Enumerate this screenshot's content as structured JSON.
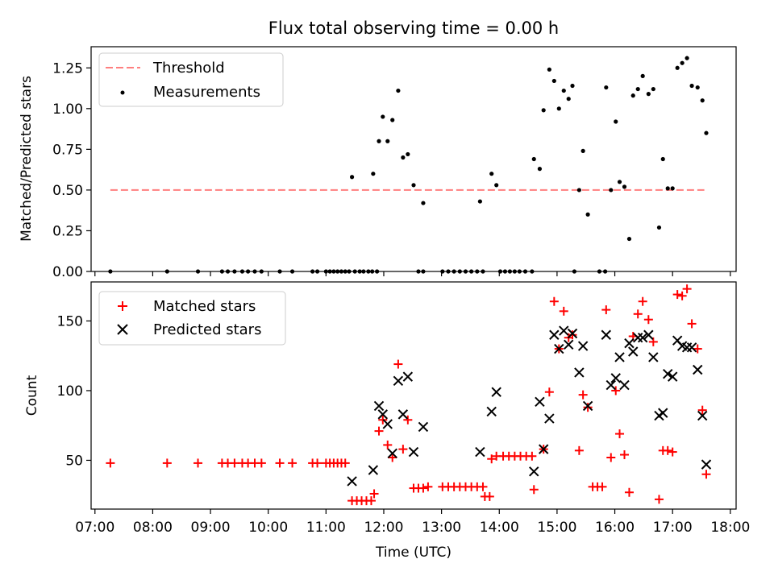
{
  "chart_data": [
    {
      "type": "scatter",
      "title": "Flux total observing time = 0.00 h",
      "ylabel": "Matched/Predicted stars",
      "xlabel": "",
      "xlim": [
        "06:56",
        "18:06"
      ],
      "ylim": [
        0,
        1.38
      ],
      "yticks": [
        "0.00",
        "0.25",
        "0.50",
        "0.75",
        "1.00",
        "1.25"
      ],
      "ytick_values": [
        0,
        0.25,
        0.5,
        0.75,
        1.0,
        1.25
      ],
      "grid": false,
      "legend_position": "top-left",
      "legend": [
        "Threshold",
        "Measurements"
      ],
      "threshold": {
        "name": "Threshold",
        "value": 0.5,
        "x_start": "07:16",
        "x_end": "17:33",
        "color": "#ff7f7f",
        "style": "dashed"
      },
      "series": [
        {
          "name": "Measurements",
          "marker": "dot",
          "color": "#000000",
          "points": [
            [
              "07:16",
              0
            ],
            [
              "08:15",
              0
            ],
            [
              "08:47",
              0
            ],
            [
              "09:12",
              0
            ],
            [
              "09:18",
              0
            ],
            [
              "09:25",
              0
            ],
            [
              "09:33",
              0
            ],
            [
              "09:39",
              0
            ],
            [
              "09:46",
              0
            ],
            [
              "09:53",
              0
            ],
            [
              "10:12",
              0
            ],
            [
              "10:25",
              0
            ],
            [
              "10:46",
              0
            ],
            [
              "10:51",
              0
            ],
            [
              "11:00",
              0
            ],
            [
              "11:04",
              0
            ],
            [
              "11:08",
              0
            ],
            [
              "11:12",
              0
            ],
            [
              "11:16",
              0
            ],
            [
              "11:20",
              0
            ],
            [
              "11:24",
              0
            ],
            [
              "11:30",
              0
            ],
            [
              "11:35",
              0
            ],
            [
              "11:39",
              0
            ],
            [
              "11:44",
              0
            ],
            [
              "11:48",
              0
            ],
            [
              "11:53",
              0
            ],
            [
              "11:27",
              0.58
            ],
            [
              "11:49",
              0.6
            ],
            [
              "11:55",
              0.8
            ],
            [
              "11:59",
              0.95
            ],
            [
              "12:04",
              0.8
            ],
            [
              "12:09",
              0.93
            ],
            [
              "12:15",
              1.11
            ],
            [
              "12:20",
              0.7
            ],
            [
              "12:25",
              0.72
            ],
            [
              "12:31",
              0.53
            ],
            [
              "12:41",
              0.42
            ],
            [
              "12:36",
              0
            ],
            [
              "12:41",
              0
            ],
            [
              "13:01",
              0
            ],
            [
              "13:07",
              0
            ],
            [
              "13:13",
              0
            ],
            [
              "13:19",
              0
            ],
            [
              "13:25",
              0
            ],
            [
              "13:31",
              0
            ],
            [
              "13:37",
              0
            ],
            [
              "13:43",
              0
            ],
            [
              "13:40",
              0.43
            ],
            [
              "13:52",
              0.6
            ],
            [
              "13:57",
              0.53
            ],
            [
              "14:01",
              0
            ],
            [
              "14:06",
              0
            ],
            [
              "14:11",
              0
            ],
            [
              "14:16",
              0
            ],
            [
              "14:21",
              0
            ],
            [
              "14:27",
              0
            ],
            [
              "14:34",
              0
            ],
            [
              "14:36",
              0.69
            ],
            [
              "14:42",
              0.63
            ],
            [
              "14:46",
              0.99
            ],
            [
              "14:52",
              1.24
            ],
            [
              "14:57",
              1.17
            ],
            [
              "15:02",
              1.0
            ],
            [
              "15:07",
              1.11
            ],
            [
              "15:12",
              1.06
            ],
            [
              "15:16",
              1.14
            ],
            [
              "15:23",
              0.5
            ],
            [
              "15:27",
              0.74
            ],
            [
              "15:32",
              0.35
            ],
            [
              "15:18",
              0
            ],
            [
              "15:44",
              0
            ],
            [
              "15:50",
              0
            ],
            [
              "15:51",
              1.13
            ],
            [
              "15:56",
              0.5
            ],
            [
              "16:01",
              0.92
            ],
            [
              "16:05",
              0.55
            ],
            [
              "16:10",
              0.52
            ],
            [
              "16:15",
              0.2
            ],
            [
              "16:19",
              1.08
            ],
            [
              "16:24",
              1.12
            ],
            [
              "16:29",
              1.2
            ],
            [
              "16:35",
              1.09
            ],
            [
              "16:40",
              1.12
            ],
            [
              "16:46",
              0.27
            ],
            [
              "16:50",
              0.69
            ],
            [
              "16:55",
              0.51
            ],
            [
              "17:00",
              0.51
            ],
            [
              "17:05",
              1.25
            ],
            [
              "17:10",
              1.28
            ],
            [
              "17:15",
              1.31
            ],
            [
              "17:20",
              1.14
            ],
            [
              "17:26",
              1.13
            ],
            [
              "17:31",
              1.05
            ],
            [
              "17:35",
              0.85
            ]
          ]
        }
      ]
    },
    {
      "type": "scatter",
      "title": "",
      "ylabel": "Count",
      "xlabel": "Time (UTC)",
      "xlim": [
        "06:56",
        "18:06"
      ],
      "ylim": [
        15,
        178
      ],
      "xticks": [
        "07:00",
        "08:00",
        "09:00",
        "10:00",
        "11:00",
        "12:00",
        "13:00",
        "14:00",
        "15:00",
        "16:00",
        "17:00",
        "18:00"
      ],
      "yticks": [
        "50",
        "100",
        "150"
      ],
      "ytick_values": [
        50,
        100,
        150
      ],
      "grid": false,
      "legend_position": "top-left",
      "legend": [
        "Matched stars",
        "Predicted stars"
      ],
      "series": [
        {
          "name": "Matched stars",
          "marker": "plus",
          "color": "#ff0000",
          "points": [
            [
              "07:16",
              48
            ],
            [
              "08:15",
              48
            ],
            [
              "08:47",
              48
            ],
            [
              "09:12",
              48
            ],
            [
              "09:18",
              48
            ],
            [
              "09:25",
              48
            ],
            [
              "09:33",
              48
            ],
            [
              "09:39",
              48
            ],
            [
              "09:46",
              48
            ],
            [
              "09:53",
              48
            ],
            [
              "10:12",
              48
            ],
            [
              "10:25",
              48
            ],
            [
              "10:46",
              48
            ],
            [
              "10:51",
              48
            ],
            [
              "11:00",
              48
            ],
            [
              "11:04",
              48
            ],
            [
              "11:08",
              48
            ],
            [
              "11:12",
              48
            ],
            [
              "11:16",
              48
            ],
            [
              "11:20",
              48
            ],
            [
              "11:27",
              21
            ],
            [
              "11:32",
              21
            ],
            [
              "11:37",
              21
            ],
            [
              "11:42",
              21
            ],
            [
              "11:47",
              21
            ],
            [
              "11:50",
              26
            ],
            [
              "11:55",
              71
            ],
            [
              "11:59",
              79
            ],
            [
              "12:04",
              61
            ],
            [
              "12:09",
              52
            ],
            [
              "12:15",
              119
            ],
            [
              "12:20",
              58
            ],
            [
              "12:25",
              79
            ],
            [
              "12:31",
              30
            ],
            [
              "12:36",
              30
            ],
            [
              "12:41",
              30
            ],
            [
              "12:46",
              31
            ],
            [
              "13:01",
              31
            ],
            [
              "13:07",
              31
            ],
            [
              "13:13",
              31
            ],
            [
              "13:19",
              31
            ],
            [
              "13:25",
              31
            ],
            [
              "13:31",
              31
            ],
            [
              "13:37",
              31
            ],
            [
              "13:43",
              31
            ],
            [
              "13:45",
              24
            ],
            [
              "13:50",
              24
            ],
            [
              "13:52",
              51
            ],
            [
              "13:57",
              53
            ],
            [
              "14:04",
              53
            ],
            [
              "14:10",
              53
            ],
            [
              "14:16",
              53
            ],
            [
              "14:22",
              53
            ],
            [
              "14:28",
              53
            ],
            [
              "14:34",
              53
            ],
            [
              "14:36",
              29
            ],
            [
              "14:46",
              58
            ],
            [
              "14:52",
              99
            ],
            [
              "14:57",
              164
            ],
            [
              "15:02",
              130
            ],
            [
              "15:07",
              157
            ],
            [
              "15:12",
              138
            ],
            [
              "15:16",
              140
            ],
            [
              "15:23",
              57
            ],
            [
              "15:27",
              97
            ],
            [
              "15:32",
              88
            ],
            [
              "15:37",
              31
            ],
            [
              "15:42",
              31
            ],
            [
              "15:47",
              31
            ],
            [
              "15:51",
              158
            ],
            [
              "15:56",
              52
            ],
            [
              "16:01",
              100
            ],
            [
              "16:05",
              69
            ],
            [
              "16:10",
              54
            ],
            [
              "16:15",
              27
            ],
            [
              "16:19",
              139
            ],
            [
              "16:24",
              155
            ],
            [
              "16:29",
              164
            ],
            [
              "16:35",
              151
            ],
            [
              "16:40",
              135
            ],
            [
              "16:46",
              22
            ],
            [
              "16:50",
              57
            ],
            [
              "16:55",
              57
            ],
            [
              "17:00",
              56
            ],
            [
              "17:05",
              169
            ],
            [
              "17:10",
              168
            ],
            [
              "17:15",
              173
            ],
            [
              "17:20",
              148
            ],
            [
              "17:26",
              130
            ],
            [
              "17:31",
              86
            ],
            [
              "17:35",
              40
            ]
          ]
        },
        {
          "name": "Predicted stars",
          "marker": "x",
          "color": "#000000",
          "points": [
            [
              "11:27",
              35
            ],
            [
              "11:49",
              43
            ],
            [
              "11:55",
              89
            ],
            [
              "11:59",
              83
            ],
            [
              "12:04",
              76
            ],
            [
              "12:09",
              55
            ],
            [
              "12:15",
              107
            ],
            [
              "12:20",
              83
            ],
            [
              "12:25",
              110
            ],
            [
              "12:31",
              56
            ],
            [
              "12:41",
              74
            ],
            [
              "13:40",
              56
            ],
            [
              "13:52",
              85
            ],
            [
              "13:57",
              99
            ],
            [
              "14:36",
              42
            ],
            [
              "14:42",
              92
            ],
            [
              "14:46",
              58
            ],
            [
              "14:52",
              80
            ],
            [
              "14:57",
              140
            ],
            [
              "15:02",
              130
            ],
            [
              "15:07",
              143
            ],
            [
              "15:12",
              133
            ],
            [
              "15:16",
              141
            ],
            [
              "15:23",
              113
            ],
            [
              "15:27",
              132
            ],
            [
              "15:32",
              89
            ],
            [
              "15:51",
              140
            ],
            [
              "15:56",
              104
            ],
            [
              "16:01",
              109
            ],
            [
              "16:05",
              124
            ],
            [
              "16:10",
              104
            ],
            [
              "16:15",
              134
            ],
            [
              "16:19",
              128
            ],
            [
              "16:24",
              138
            ],
            [
              "16:29",
              138
            ],
            [
              "16:35",
              140
            ],
            [
              "16:40",
              124
            ],
            [
              "16:46",
              82
            ],
            [
              "16:50",
              84
            ],
            [
              "16:55",
              112
            ],
            [
              "17:00",
              110
            ],
            [
              "17:05",
              136
            ],
            [
              "17:10",
              132
            ],
            [
              "17:15",
              131
            ],
            [
              "17:20",
              131
            ],
            [
              "17:26",
              115
            ],
            [
              "17:31",
              82
            ],
            [
              "17:35",
              47
            ]
          ]
        }
      ]
    }
  ]
}
